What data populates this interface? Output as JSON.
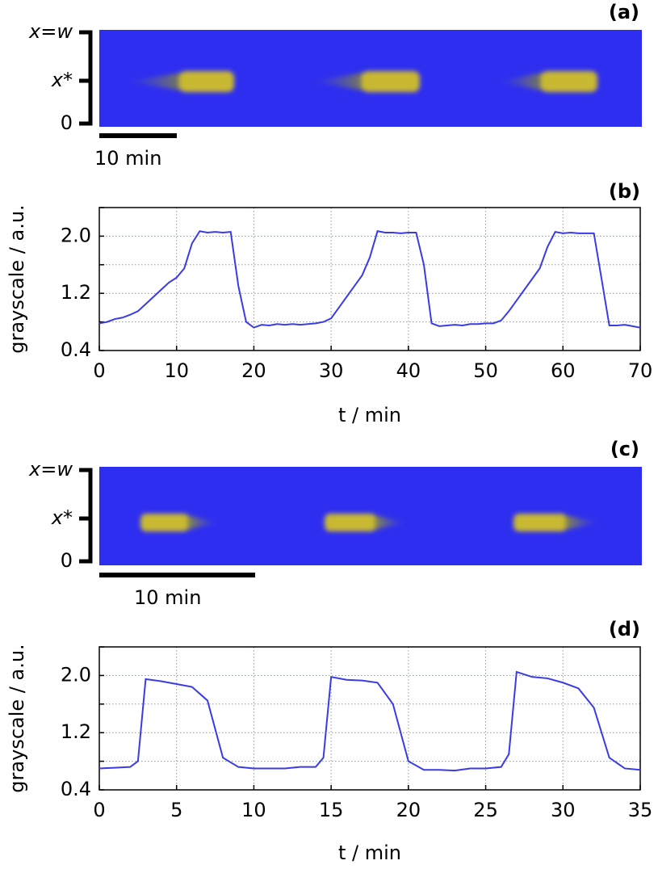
{
  "images": [
    {
      "label": "(a)",
      "top_label": "x=w",
      "mid_label": "x*",
      "bottom_label": "0",
      "scale_label": "10 min"
    },
    {
      "label": "(c)",
      "top_label": "x=w",
      "mid_label": "x*",
      "bottom_label": "0",
      "scale_label": "10 min"
    }
  ],
  "chart_data": [
    {
      "type": "line",
      "title": "(b)",
      "xlabel": "t / min",
      "ylabel": "grayscale / a.u.",
      "color": "#3b3be6",
      "grid": true,
      "xlim": [
        0,
        70
      ],
      "xticks": [
        0,
        10,
        20,
        30,
        40,
        50,
        60,
        70
      ],
      "ylim": [
        0.4,
        2.4
      ],
      "yticks": [
        0.4,
        1.2,
        {
          "value": 2,
          "label": "2.0"
        }
      ],
      "minor_yticks": [
        0.8,
        1.6,
        2.4
      ],
      "x": [
        0,
        1,
        2,
        3,
        4,
        5,
        6,
        7,
        8,
        9,
        10,
        11,
        12,
        13,
        14,
        15,
        16,
        17,
        18,
        19,
        20,
        21,
        22,
        23,
        24,
        25,
        26,
        27,
        28,
        29,
        30,
        31,
        32,
        33,
        34,
        35,
        36,
        37,
        38,
        39,
        40,
        41,
        42,
        43,
        44,
        45,
        46,
        47,
        48,
        49,
        50,
        51,
        52,
        53,
        54,
        55,
        56,
        57,
        58,
        59,
        60,
        61,
        62,
        63,
        64,
        65,
        66,
        67,
        68,
        69,
        70
      ],
      "values": [
        0.78,
        0.8,
        0.84,
        0.86,
        0.9,
        0.95,
        1.05,
        1.15,
        1.25,
        1.35,
        1.42,
        1.55,
        1.9,
        2.07,
        2.05,
        2.06,
        2.05,
        2.06,
        1.3,
        0.8,
        0.72,
        0.76,
        0.75,
        0.77,
        0.76,
        0.77,
        0.76,
        0.77,
        0.78,
        0.8,
        0.85,
        1.0,
        1.15,
        1.3,
        1.45,
        1.7,
        2.07,
        2.05,
        2.05,
        2.04,
        2.05,
        2.05,
        1.6,
        0.78,
        0.74,
        0.75,
        0.76,
        0.75,
        0.77,
        0.77,
        0.78,
        0.78,
        0.82,
        0.95,
        1.1,
        1.25,
        1.4,
        1.55,
        1.85,
        2.06,
        2.04,
        2.05,
        2.04,
        2.04,
        2.04,
        1.4,
        0.75,
        0.75,
        0.76,
        0.74,
        0.72
      ]
    },
    {
      "type": "line",
      "title": "(d)",
      "xlabel": "t / min",
      "ylabel": "grayscale / a.u.",
      "color": "#3b3be6",
      "grid": true,
      "xlim": [
        0,
        35
      ],
      "xticks": [
        0,
        5,
        10,
        15,
        20,
        25,
        30,
        35
      ],
      "ylim": [
        0.4,
        2.4
      ],
      "yticks": [
        0.4,
        1.2,
        {
          "value": 2,
          "label": "2.0"
        }
      ],
      "minor_yticks": [
        0.8,
        1.6,
        2.4
      ],
      "x": [
        0,
        1,
        2,
        2.5,
        3,
        4,
        5,
        6,
        7,
        8,
        9,
        10,
        11,
        12,
        13,
        14,
        14.5,
        15,
        16,
        17,
        18,
        19,
        20,
        21,
        22,
        23,
        24,
        25,
        26,
        26.5,
        27,
        28,
        29,
        30,
        31,
        32,
        33,
        34,
        35
      ],
      "values": [
        0.7,
        0.71,
        0.72,
        0.8,
        1.95,
        1.92,
        1.88,
        1.84,
        1.65,
        0.85,
        0.72,
        0.7,
        0.7,
        0.7,
        0.72,
        0.72,
        0.85,
        1.98,
        1.94,
        1.93,
        1.9,
        1.6,
        0.8,
        0.68,
        0.68,
        0.67,
        0.7,
        0.7,
        0.72,
        0.9,
        2.05,
        1.98,
        1.96,
        1.9,
        1.82,
        1.55,
        0.85,
        0.7,
        0.68
      ]
    }
  ]
}
